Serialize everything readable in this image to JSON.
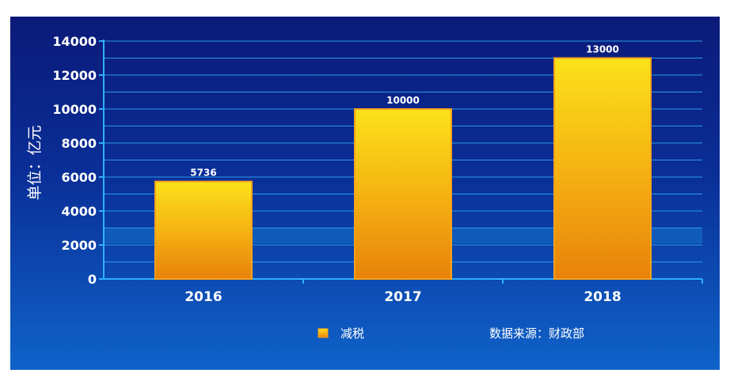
{
  "chart_data": {
    "type": "bar",
    "categories": [
      "2016",
      "2017",
      "2018"
    ],
    "series": [
      {
        "name": "减税",
        "values": [
          5736,
          10000,
          13000
        ]
      }
    ],
    "data_labels": [
      "5736",
      "10000",
      "13000"
    ],
    "ylabel": "单位：亿元",
    "ylim": [
      0,
      14000
    ],
    "y_ticks": [
      0,
      2000,
      4000,
      6000,
      8000,
      10000,
      12000,
      14000
    ],
    "y_tick_labels": [
      "0",
      "2000",
      "4000",
      "6000",
      "8000",
      "10000",
      "12000",
      "14000"
    ],
    "grid": true,
    "legend_position": "bottom",
    "source_note": "数据来源：财政部",
    "colors": {
      "bg_top": "#0b1a78",
      "bg_bottom": "#0f63c9",
      "bar_top": "#fbe21a",
      "bar_bottom": "#e8820a",
      "bar_edge": "#f7a21b",
      "axis": "#2fb0ff",
      "grid": "#2a9be8",
      "text": "#ffffff"
    }
  }
}
